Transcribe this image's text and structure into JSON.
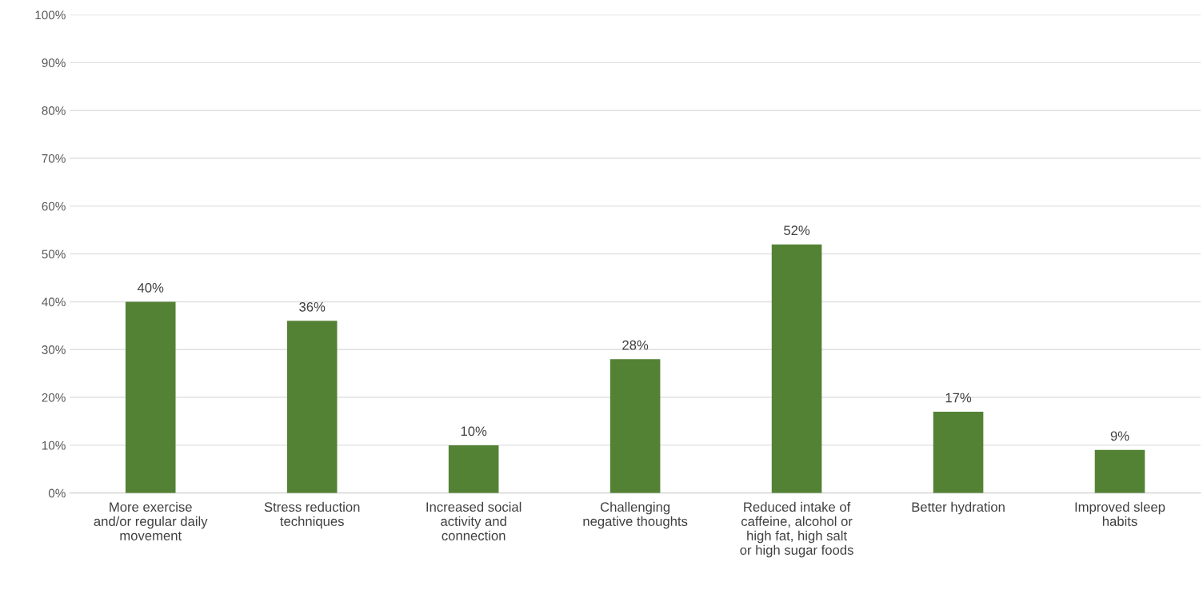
{
  "chart_data": {
    "type": "bar",
    "categories": [
      "More exercise\nand/or regular daily\nmovement",
      "Stress reduction\ntechniques",
      "Increased social\nactivity and\nconnection",
      "Challenging\nnegative thoughts",
      "Reduced intake of\ncaffeine, alcohol or\nhigh fat, high salt\nor high sugar foods",
      "Better hydration",
      "Improved sleep\nhabits"
    ],
    "values": [
      40,
      36,
      10,
      28,
      52,
      17,
      9
    ],
    "value_labels": [
      "40%",
      "36%",
      "10%",
      "28%",
      "52%",
      "17%",
      "9%"
    ],
    "color": "#548235",
    "ylim": [
      0,
      100
    ],
    "yticks": [
      {
        "value": 0,
        "label": "0%"
      },
      {
        "value": 10,
        "label": "10%"
      },
      {
        "value": 20,
        "label": "20%"
      },
      {
        "value": 30,
        "label": "30%"
      },
      {
        "value": 40,
        "label": "40%"
      },
      {
        "value": 50,
        "label": "50%"
      },
      {
        "value": 60,
        "label": "60%"
      },
      {
        "value": 70,
        "label": "70%"
      },
      {
        "value": 80,
        "label": "80%"
      },
      {
        "value": 90,
        "label": "90%"
      },
      {
        "value": 100,
        "label": "100%"
      }
    ],
    "grid": "y",
    "legend": false
  }
}
